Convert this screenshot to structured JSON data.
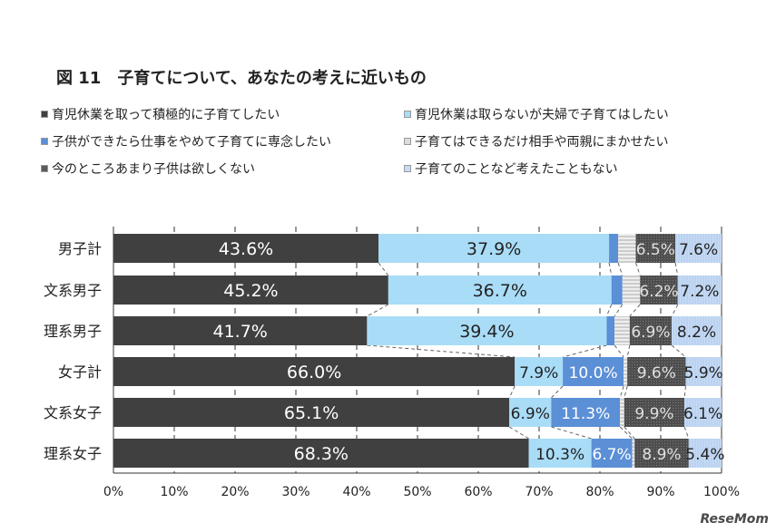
{
  "chart_data": {
    "type": "bar",
    "orientation": "horizontal",
    "stacked": "100%",
    "title": "図 11　子育てについて、あなたの考えに近いもの",
    "categories": [
      "男子計",
      "文系男子",
      "理系男子",
      "女子計",
      "文系女子",
      "理系女子"
    ],
    "series": [
      {
        "name": "育児休業を取って積極的に子育てしたい",
        "color": "#404040",
        "label_color": "#ffffff",
        "values": [
          43.6,
          45.2,
          41.7,
          66.0,
          65.1,
          68.3
        ]
      },
      {
        "name": "育児休業は取らないが夫婦で子育てはしたい",
        "color": "#a9dcf7",
        "label_color": "#222222",
        "values": [
          37.9,
          36.7,
          39.4,
          7.9,
          6.9,
          10.3
        ]
      },
      {
        "name": "子供ができたら仕事をやめて子育てに専念したい",
        "color": "#5b8fd6",
        "label_color": "#ffffff",
        "values": [
          1.5,
          1.8,
          1.3,
          10.0,
          11.3,
          6.7
        ],
        "labels_shown": [
          false,
          false,
          false,
          true,
          true,
          true
        ]
      },
      {
        "name": "子育てはできるだけ相手や両親にまかせたい",
        "color": "#dcdcdc",
        "label_color": "#222222",
        "values": [
          2.9,
          2.9,
          2.5,
          0.6,
          0.7,
          0.4
        ],
        "labels_shown": [
          false,
          false,
          false,
          false,
          false,
          false
        ]
      },
      {
        "name": "今のところあまり子供は欲しくない",
        "color": "#5a5a5a",
        "label_color": "#e0e0e0",
        "values": [
          6.5,
          6.2,
          6.9,
          9.6,
          9.9,
          8.9
        ]
      },
      {
        "name": "子育てのことなど考えたこともない",
        "color": "#c6dcf5",
        "label_color": "#222222",
        "values": [
          7.6,
          7.2,
          8.2,
          5.9,
          6.1,
          5.4
        ]
      }
    ],
    "xlim": [
      0,
      100
    ],
    "xticks": [
      "0%",
      "10%",
      "20%",
      "30%",
      "40%",
      "50%",
      "60%",
      "70%",
      "80%",
      "90%",
      "100%"
    ],
    "grid": "vertical dashed",
    "legend_position": "top"
  },
  "logo_text": "ReseMom"
}
